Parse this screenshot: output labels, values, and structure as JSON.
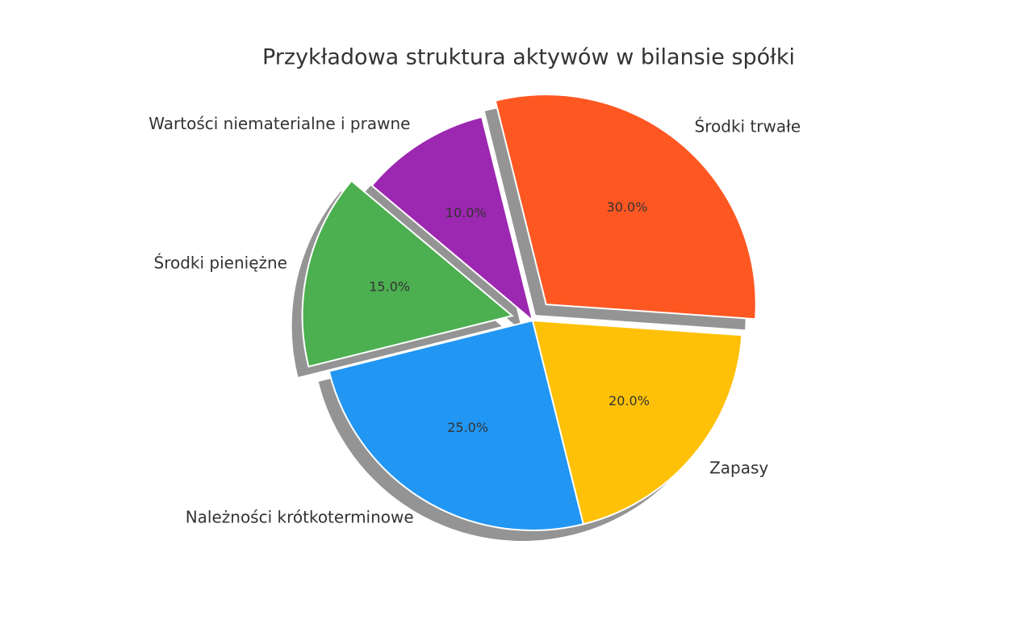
{
  "chart_data": {
    "type": "pie",
    "title": "Przykładowa struktura aktywów w bilansie spółki",
    "categories": [
      "Środki trwałe",
      "Wartości niematerialne i prawne",
      "Środki pieniężne",
      "Należności krótkoterminowe",
      "Zapasy"
    ],
    "values": [
      30,
      10,
      15,
      25,
      20
    ],
    "value_labels": [
      "30.0%",
      "10.0%",
      "15.0%",
      "25.0%",
      "20.0%"
    ],
    "colors": [
      "#FF5722",
      "#9C27B0",
      "#4CAF50",
      "#2196F3",
      "#FFC107"
    ],
    "explode": [
      0.1,
      0,
      0.1,
      0,
      0
    ],
    "shadow": true
  }
}
